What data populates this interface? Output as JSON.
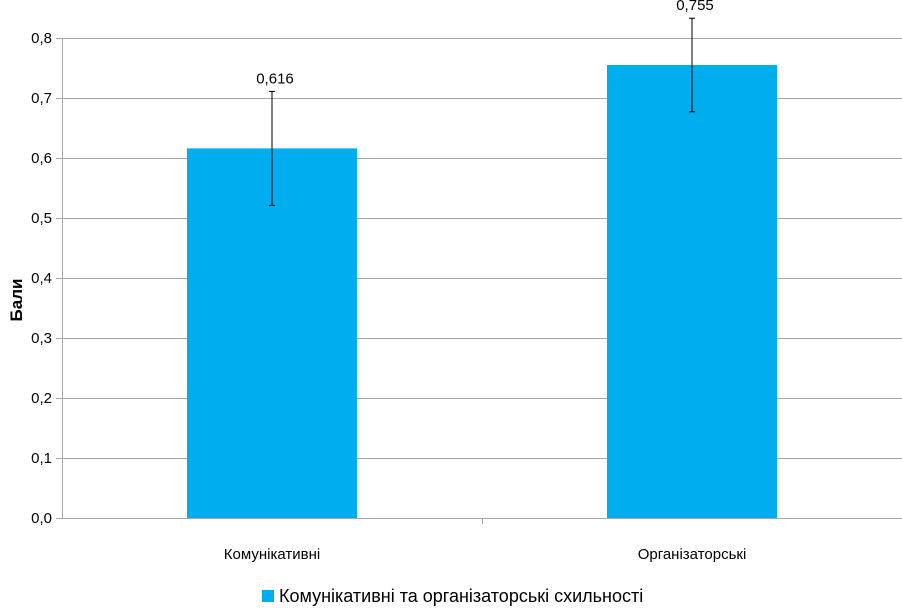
{
  "chart_data": {
    "type": "bar",
    "title": "",
    "xlabel": "",
    "ylabel": "Бали",
    "categories": [
      "Комунікативні",
      "Організаторські"
    ],
    "series": [
      {
        "name": "Комунікативні та організаторські схильності",
        "values": [
          0.616,
          0.755
        ],
        "error": [
          0.095,
          0.078
        ],
        "data_labels": [
          "0,616",
          "0,755"
        ],
        "color": "#00aeef"
      }
    ],
    "ylim": [
      0,
      0.8
    ],
    "yticks": [
      0.0,
      0.1,
      0.2,
      0.3,
      0.4,
      0.5,
      0.6,
      0.7,
      0.8
    ],
    "ytick_labels": [
      "0,0",
      "0,1",
      "0,2",
      "0,3",
      "0,4",
      "0,5",
      "0,6",
      "0,7",
      "0,8"
    ],
    "grid": true,
    "legend_position": "bottom"
  }
}
